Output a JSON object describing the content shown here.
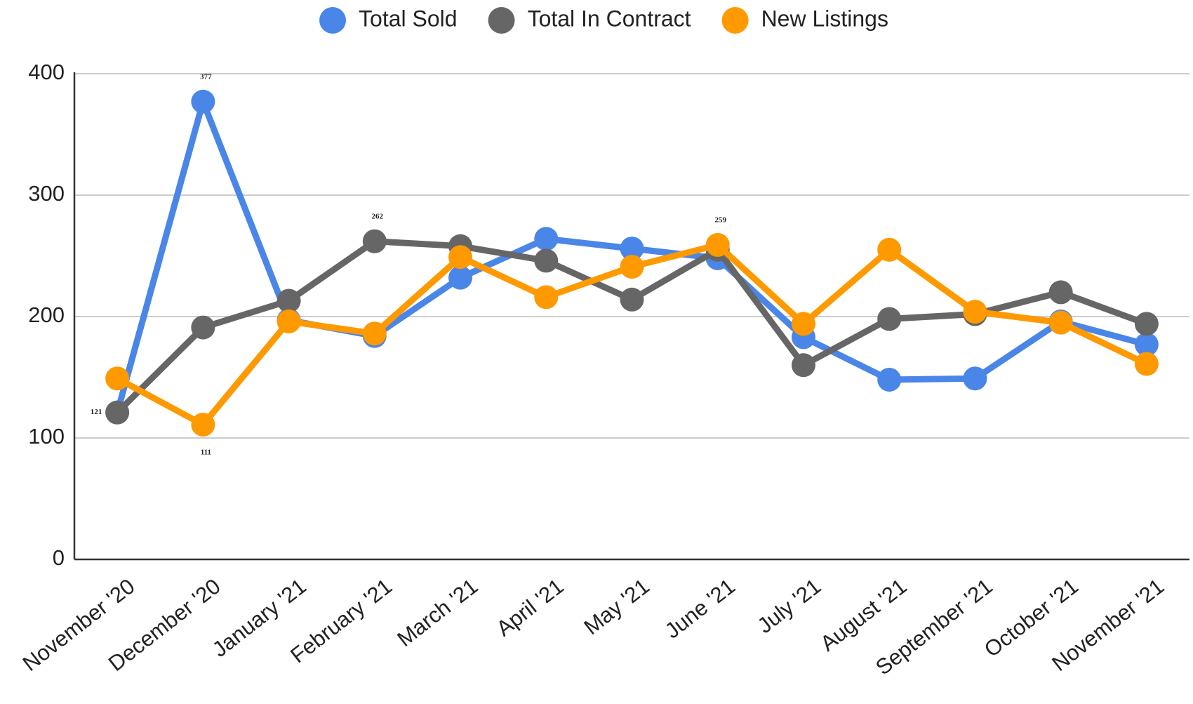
{
  "chart_data": {
    "type": "line",
    "categories": [
      "November '20",
      "December '20",
      "January '21",
      "February '21",
      "March '21",
      "April '21",
      "May '21",
      "June '21",
      "July '21",
      "August '21",
      "September '21",
      "October '21",
      "November '21"
    ],
    "series": [
      {
        "name": "Total Sold",
        "color": "#4a86e8",
        "values": [
          121,
          377,
          197,
          184,
          232,
          264,
          256,
          248,
          183,
          148,
          149,
          196,
          177
        ],
        "value_labels": [
          null,
          "377",
          null,
          null,
          null,
          null,
          null,
          null,
          null,
          null,
          null,
          null,
          null
        ]
      },
      {
        "name": "Total In Contract",
        "color": "#666666",
        "values": [
          121,
          191,
          213,
          262,
          258,
          246,
          214,
          255,
          160,
          198,
          202,
          220,
          194
        ],
        "value_labels": [
          "121",
          null,
          null,
          "262",
          null,
          null,
          null,
          null,
          null,
          null,
          null,
          null,
          null
        ]
      },
      {
        "name": "New Listings",
        "color": "#ff9900",
        "values": [
          149,
          111,
          196,
          186,
          249,
          216,
          241,
          259,
          194,
          255,
          204,
          195,
          161
        ],
        "value_labels": [
          null,
          "111",
          null,
          null,
          null,
          null,
          null,
          "259",
          null,
          null,
          null,
          null,
          null
        ]
      }
    ],
    "ylim": [
      0,
      400
    ],
    "yticks": [
      0,
      100,
      200,
      300,
      400
    ],
    "grid": true,
    "legend": "top"
  }
}
